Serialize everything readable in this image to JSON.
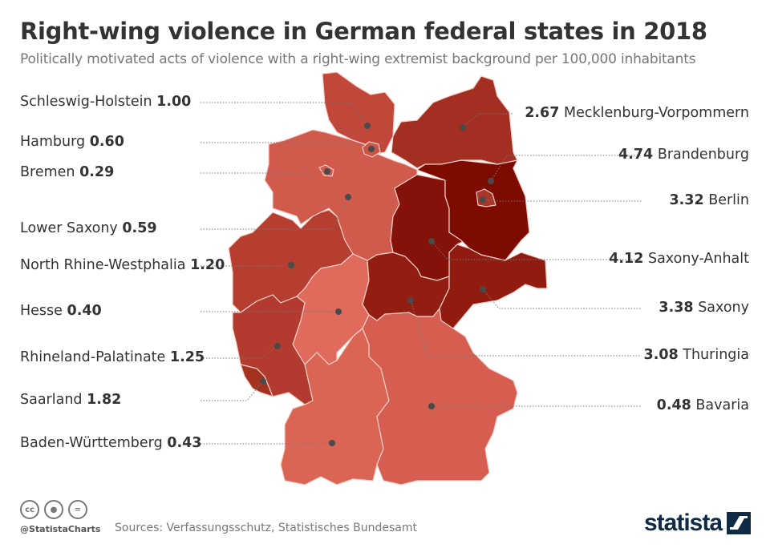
{
  "header": {
    "title": "Right-wing violence in German federal states in 2018",
    "subtitle": "Politically motivated acts of violence with a right-wing extremist background per 100,000 inhabitants"
  },
  "states": [
    {
      "id": "schleswig-holstein",
      "name": "Schleswig-Holstein",
      "value": "1.00",
      "side": "left",
      "color": "#c2473b"
    },
    {
      "id": "hamburg",
      "name": "Hamburg",
      "value": "0.60",
      "side": "left",
      "color": "#cc5446"
    },
    {
      "id": "bremen",
      "name": "Bremen",
      "value": "0.29",
      "side": "left",
      "color": "#d45c4e"
    },
    {
      "id": "lower-saxony",
      "name": "Lower Saxony",
      "value": "0.59",
      "side": "left",
      "color": "#d05a4c"
    },
    {
      "id": "north-rhine-westphalia",
      "name": "North Rhine-Westphalia",
      "value": "1.20",
      "side": "left",
      "color": "#b53e31"
    },
    {
      "id": "hesse",
      "name": "Hesse",
      "value": "0.40",
      "side": "left",
      "color": "#e06a5c"
    },
    {
      "id": "rhineland-palatinate",
      "name": "Rhineland-Palatinate",
      "value": "1.25",
      "side": "left",
      "color": "#b23a2e"
    },
    {
      "id": "saarland",
      "name": "Saarland",
      "value": "1.82",
      "side": "left",
      "color": "#a5321f"
    },
    {
      "id": "baden-wurttemberg",
      "name": "Baden-Württemberg",
      "value": "0.43",
      "side": "left",
      "color": "#da6555"
    },
    {
      "id": "mecklenburg-vorpommern",
      "name": "Mecklenburg-Vorpommern",
      "value": "2.67",
      "side": "right",
      "color": "#a22f22"
    },
    {
      "id": "brandenburg",
      "name": "Brandenburg",
      "value": "4.74",
      "side": "right",
      "color": "#7d0b00"
    },
    {
      "id": "berlin",
      "name": "Berlin",
      "value": "3.32",
      "side": "right",
      "color": "#a8372a"
    },
    {
      "id": "saxony-anhalt",
      "name": "Saxony-Anhalt",
      "value": "4.12",
      "side": "right",
      "color": "#851208"
    },
    {
      "id": "saxony",
      "name": "Saxony",
      "value": "3.38",
      "side": "right",
      "color": "#901c10"
    },
    {
      "id": "thuringia",
      "name": "Thuringia",
      "value": "3.08",
      "side": "right",
      "color": "#921e12"
    },
    {
      "id": "bavaria",
      "name": "Bavaria",
      "value": "0.48",
      "side": "right",
      "color": "#d55e50"
    }
  ],
  "footer": {
    "handle": "@StatistaCharts",
    "source": "Sources: Verfassungsschutz, Statistisches Bundesamt",
    "logo": "statista",
    "license_icons": [
      "cc-icon",
      "by-icon",
      "nd-icon"
    ]
  }
}
